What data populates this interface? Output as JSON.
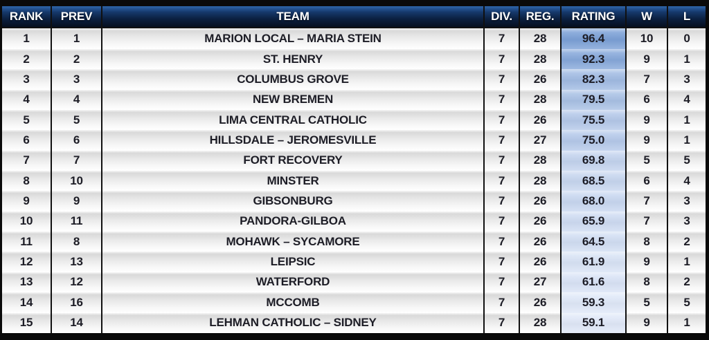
{
  "chart_data": {
    "type": "table",
    "columns": [
      {
        "key": "rank",
        "label": "RANK"
      },
      {
        "key": "prev",
        "label": "PREV"
      },
      {
        "key": "team",
        "label": "TEAM"
      },
      {
        "key": "div",
        "label": "DIV."
      },
      {
        "key": "reg",
        "label": "REG."
      },
      {
        "key": "rating",
        "label": "RATING"
      },
      {
        "key": "w",
        "label": "W"
      },
      {
        "key": "l",
        "label": "L"
      }
    ],
    "rows": [
      {
        "rank": "1",
        "prev": "1",
        "team": "MARION LOCAL – MARIA STEIN",
        "div": "7",
        "reg": "28",
        "rating": "96.4",
        "w": "10",
        "l": "0"
      },
      {
        "rank": "2",
        "prev": "2",
        "team": "ST. HENRY",
        "div": "7",
        "reg": "28",
        "rating": "92.3",
        "w": "9",
        "l": "1"
      },
      {
        "rank": "3",
        "prev": "3",
        "team": "COLUMBUS GROVE",
        "div": "7",
        "reg": "26",
        "rating": "82.3",
        "w": "7",
        "l": "3"
      },
      {
        "rank": "4",
        "prev": "4",
        "team": "NEW BREMEN",
        "div": "7",
        "reg": "28",
        "rating": "79.5",
        "w": "6",
        "l": "4"
      },
      {
        "rank": "5",
        "prev": "5",
        "team": "LIMA CENTRAL CATHOLIC",
        "div": "7",
        "reg": "26",
        "rating": "75.5",
        "w": "9",
        "l": "1"
      },
      {
        "rank": "6",
        "prev": "6",
        "team": "HILLSDALE – JEROMESVILLE",
        "div": "7",
        "reg": "27",
        "rating": "75.0",
        "w": "9",
        "l": "1"
      },
      {
        "rank": "7",
        "prev": "7",
        "team": "FORT RECOVERY",
        "div": "7",
        "reg": "28",
        "rating": "69.8",
        "w": "5",
        "l": "5"
      },
      {
        "rank": "8",
        "prev": "10",
        "team": "MINSTER",
        "div": "7",
        "reg": "28",
        "rating": "68.5",
        "w": "6",
        "l": "4"
      },
      {
        "rank": "9",
        "prev": "9",
        "team": "GIBSONBURG",
        "div": "7",
        "reg": "26",
        "rating": "68.0",
        "w": "7",
        "l": "3"
      },
      {
        "rank": "10",
        "prev": "11",
        "team": "PANDORA-GILBOA",
        "div": "7",
        "reg": "26",
        "rating": "65.9",
        "w": "7",
        "l": "3"
      },
      {
        "rank": "11",
        "prev": "8",
        "team": "MOHAWK – SYCAMORE",
        "div": "7",
        "reg": "26",
        "rating": "64.5",
        "w": "8",
        "l": "2"
      },
      {
        "rank": "12",
        "prev": "13",
        "team": "LEIPSIC",
        "div": "7",
        "reg": "26",
        "rating": "61.9",
        "w": "9",
        "l": "1"
      },
      {
        "rank": "13",
        "prev": "12",
        "team": "WATERFORD",
        "div": "7",
        "reg": "27",
        "rating": "61.6",
        "w": "8",
        "l": "2"
      },
      {
        "rank": "14",
        "prev": "16",
        "team": "MCCOMB",
        "div": "7",
        "reg": "26",
        "rating": "59.3",
        "w": "5",
        "l": "5"
      },
      {
        "rank": "15",
        "prev": "14",
        "team": "LEHMAN CATHOLIC – SIDNEY",
        "div": "7",
        "reg": "28",
        "rating": "59.1",
        "w": "9",
        "l": "1"
      }
    ],
    "rating_range": {
      "max": 96.4,
      "min": 59.1
    }
  },
  "colors": {
    "frame": "#0a0a0a",
    "header_gradient_top": "#2e66ab",
    "header_gradient_bottom": "#060f1f",
    "header_text": "#ffffff",
    "row_text": "#1d1d26",
    "rating_scale_high": "#7ba0d6",
    "rating_scale_low": "#e0e8f8"
  }
}
